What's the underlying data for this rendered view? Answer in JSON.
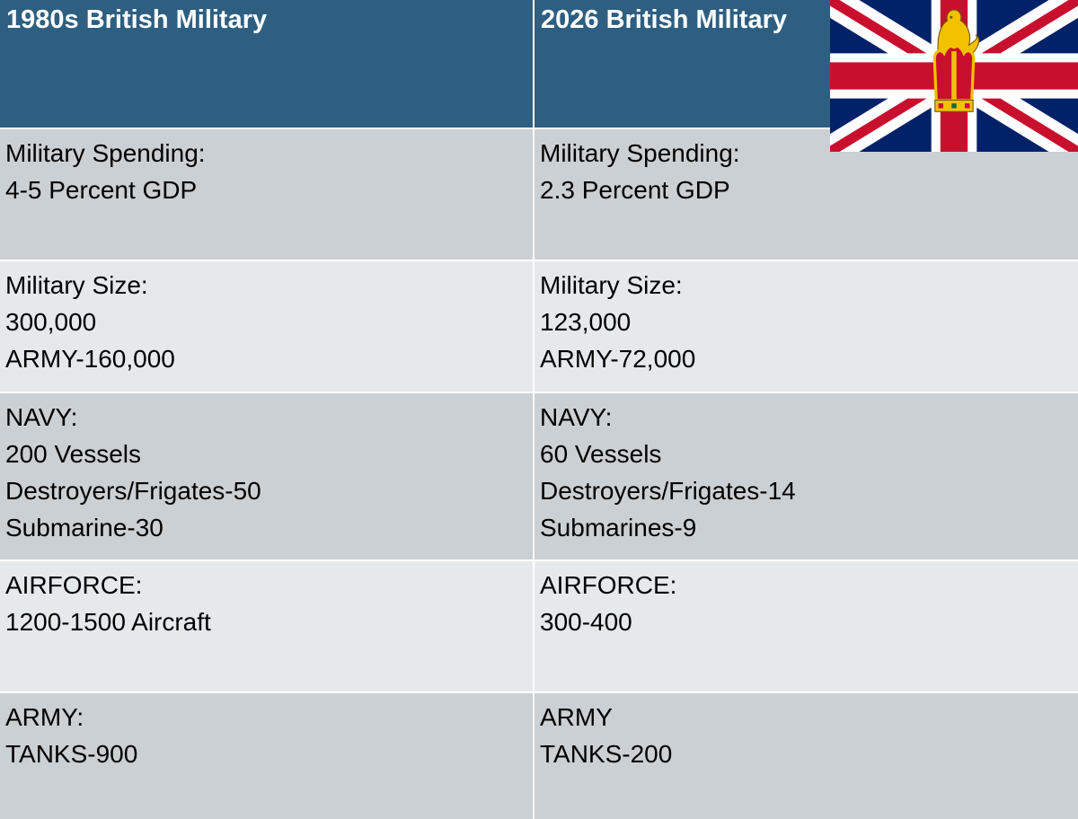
{
  "header": {
    "left": "1980s British Military",
    "right": "2026 British Military"
  },
  "rows": [
    {
      "left": [
        "Military Spending:",
        "4-5 Percent GDP"
      ],
      "right": [
        "Military Spending:",
        "2.3 Percent GDP"
      ]
    },
    {
      "left": [
        "Military Size:",
        "300,000",
        "ARMY-160,000"
      ],
      "right": [
        "Military Size:",
        "123,000",
        "ARMY-72,000"
      ]
    },
    {
      "left": [
        "NAVY:",
        "200 Vessels",
        "Destroyers/Frigates-50",
        "Submarine-30"
      ],
      "right": [
        "NAVY:",
        "60 Vessels",
        "Destroyers/Frigates-14",
        "Submarines-9"
      ]
    },
    {
      "left": [
        "AIRFORCE:",
        "1200-1500 Aircraft"
      ],
      "right": [
        "AIRFORCE:",
        "300-400"
      ]
    },
    {
      "left": [
        "ARMY:",
        "TANKS-900"
      ],
      "right": [
        "ARMY",
        "TANKS-200"
      ]
    }
  ],
  "flag": {
    "icon": "union-jack-royal-standard-icon"
  },
  "colors": {
    "header_bg": "#2e5f80",
    "row_dark": "#cbd0d4",
    "row_light": "#e6e9ec",
    "flag_blue": "#012169",
    "flag_red": "#C8102E"
  }
}
